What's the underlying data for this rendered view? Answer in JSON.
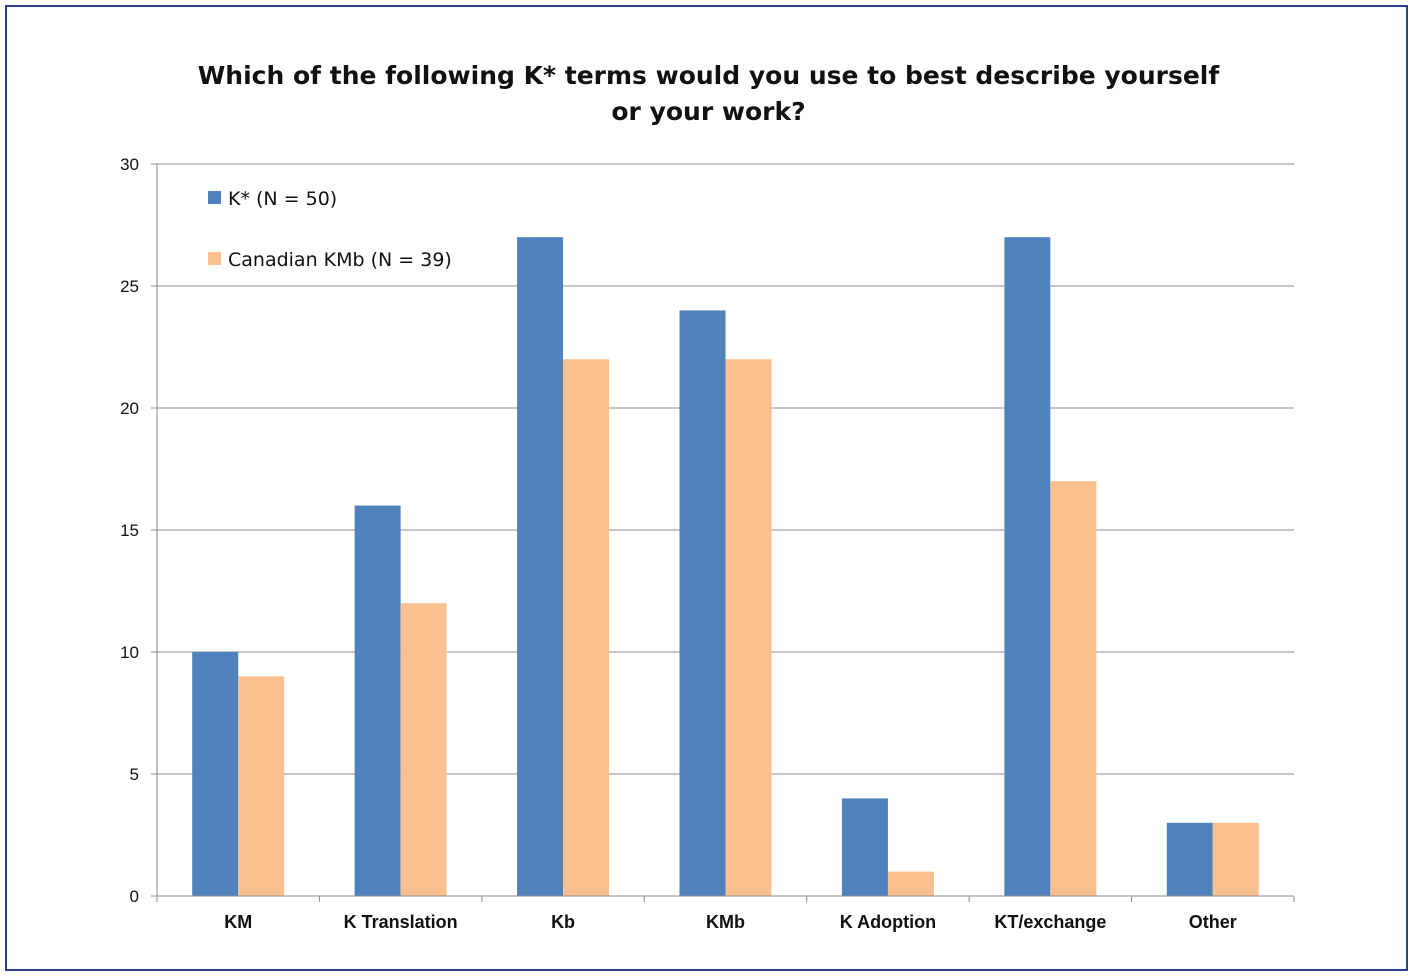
{
  "chart_data": {
    "type": "bar",
    "title": "Which of the following K* terms would you use to best describe yourself or your work?",
    "title_lines": [
      "Which of the following K* terms would you use to best describe yourself",
      "or your work?"
    ],
    "categories": [
      "KM",
      "K Translation",
      "Kb",
      "KMb",
      "K Adoption",
      "KT/exchange",
      "Other"
    ],
    "series": [
      {
        "name": "K* (N = 50)",
        "color": "#4f81bd",
        "values": [
          10,
          16,
          27,
          24,
          4,
          27,
          3
        ]
      },
      {
        "name": "Canadian KMb (N = 39)",
        "color": "#fac090",
        "values": [
          9,
          12,
          22,
          22,
          1,
          17,
          3
        ]
      }
    ],
    "ylim": [
      0,
      30
    ],
    "yticks": [
      0,
      5,
      10,
      15,
      20,
      25,
      30
    ],
    "grid": true,
    "legend_position": "top-left"
  }
}
